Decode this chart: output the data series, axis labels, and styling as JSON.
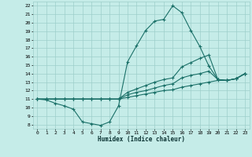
{
  "xlabel": "Humidex (Indice chaleur)",
  "xlim": [
    -0.5,
    23.5
  ],
  "ylim": [
    7.5,
    22.5
  ],
  "yticks": [
    8,
    9,
    10,
    11,
    12,
    13,
    14,
    15,
    16,
    17,
    18,
    19,
    20,
    21,
    22
  ],
  "xticks": [
    0,
    1,
    2,
    3,
    4,
    5,
    6,
    7,
    8,
    9,
    10,
    11,
    12,
    13,
    14,
    15,
    16,
    17,
    18,
    19,
    20,
    21,
    22,
    23
  ],
  "bg_color": "#c5ece8",
  "grid_color": "#9dcfca",
  "line_color": "#1a7068",
  "marker": "+",
  "lines": [
    [
      11.0,
      10.9,
      10.5,
      10.2,
      9.8,
      8.3,
      8.1,
      7.9,
      8.3,
      10.2,
      15.4,
      17.3,
      19.1,
      20.2,
      20.4,
      22.0,
      21.2,
      19.1,
      17.2,
      14.9,
      13.3,
      13.2,
      13.4,
      14.0
    ],
    [
      11.0,
      11.0,
      11.0,
      11.0,
      11.0,
      11.0,
      11.0,
      11.0,
      11.0,
      11.0,
      11.8,
      12.2,
      12.6,
      13.0,
      13.3,
      13.5,
      14.8,
      15.3,
      15.8,
      16.2,
      13.3,
      13.2,
      13.4,
      14.0
    ],
    [
      11.0,
      11.0,
      11.0,
      11.0,
      11.0,
      11.0,
      11.0,
      11.0,
      11.0,
      11.0,
      11.5,
      11.8,
      12.0,
      12.3,
      12.6,
      12.8,
      13.5,
      13.8,
      14.0,
      14.3,
      13.3,
      13.2,
      13.4,
      14.0
    ],
    [
      11.0,
      11.0,
      11.0,
      11.0,
      11.0,
      11.0,
      11.0,
      11.0,
      11.0,
      11.0,
      11.2,
      11.4,
      11.6,
      11.8,
      12.0,
      12.1,
      12.4,
      12.6,
      12.8,
      13.0,
      13.2,
      13.2,
      13.4,
      14.0
    ]
  ]
}
